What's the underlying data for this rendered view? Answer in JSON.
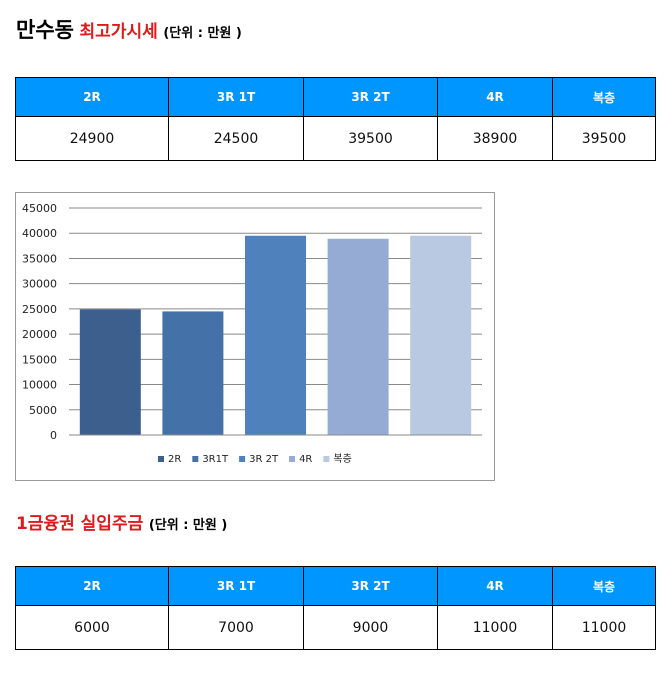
{
  "section1": {
    "title_black": "만수동",
    "title_red": "최고가시세",
    "unit": "(단위 : 만원 )",
    "headers": [
      "2R",
      "3R 1T",
      "3R 2T",
      "4R",
      "복층"
    ],
    "values": [
      "24900",
      "24500",
      "39500",
      "38900",
      "39500"
    ]
  },
  "section2": {
    "title_red": "1금융권 실입주금",
    "unit": "(단위 : 만원 )",
    "headers": [
      "2R",
      "3R 1T",
      "3R 2T",
      "4R",
      "복층"
    ],
    "values": [
      "6000",
      "7000",
      "9000",
      "11000",
      "11000"
    ]
  },
  "chart_data": {
    "type": "bar",
    "categories": [
      "2R",
      "3R1T",
      "3R 2T",
      "4R",
      "복층"
    ],
    "values": [
      24900,
      24500,
      39500,
      38900,
      39500
    ],
    "colors": [
      "#3c5f8e",
      "#4472a8",
      "#4f81bd",
      "#95abd3",
      "#b9c9e2"
    ],
    "ylim": [
      0,
      45000
    ],
    "yticks": [
      0,
      5000,
      10000,
      15000,
      20000,
      25000,
      30000,
      35000,
      40000,
      45000
    ],
    "grid": true,
    "legend_position": "bottom"
  }
}
